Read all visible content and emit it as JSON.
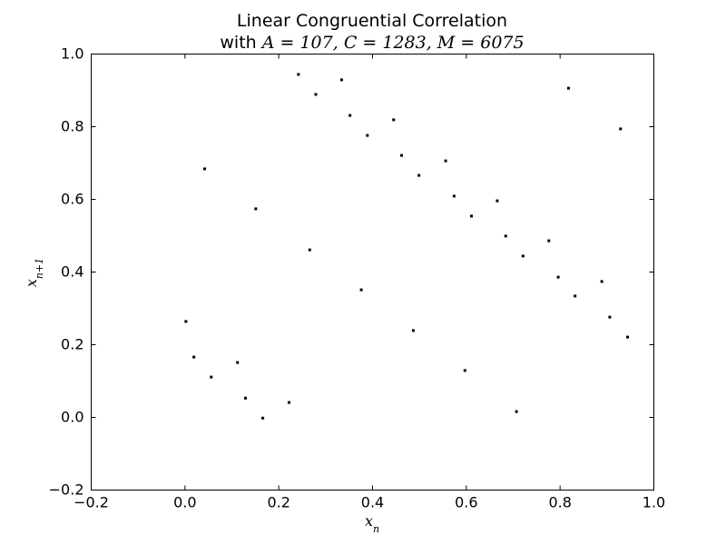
{
  "chart_data": {
    "type": "scatter",
    "title": "Linear Congruential Correlation",
    "subtitle_prefix": "with ",
    "subtitle_math": "A = 107, C = 1283, M = 6075",
    "xlabel": "x_n",
    "ylabel": "x_{n+1}",
    "xlim": [
      -0.2,
      1.0
    ],
    "ylim": [
      -0.2,
      1.0
    ],
    "xticks": [
      -0.2,
      0.0,
      0.2,
      0.4,
      0.6,
      0.8,
      1.0
    ],
    "yticks": [
      -0.2,
      0.0,
      0.2,
      0.4,
      0.6,
      0.8,
      1.0
    ],
    "xtick_labels": [
      "−0.2",
      "0.0",
      "0.2",
      "0.4",
      "0.6",
      "0.8",
      "1.0"
    ],
    "ytick_labels": [
      "−0.2",
      "0.0",
      "0.2",
      "0.4",
      "0.6",
      "0.8",
      "1.0"
    ],
    "grid": false,
    "marker_color": "#000000",
    "points": [
      {
        "x": 0.002,
        "y": 0.264
      },
      {
        "x": 0.019,
        "y": 0.166
      },
      {
        "x": 0.042,
        "y": 0.684
      },
      {
        "x": 0.056,
        "y": 0.111
      },
      {
        "x": 0.112,
        "y": 0.151
      },
      {
        "x": 0.129,
        "y": 0.053
      },
      {
        "x": 0.151,
        "y": 0.574
      },
      {
        "x": 0.166,
        "y": -0.002
      },
      {
        "x": 0.222,
        "y": 0.041
      },
      {
        "x": 0.242,
        "y": 0.944
      },
      {
        "x": 0.266,
        "y": 0.461
      },
      {
        "x": 0.279,
        "y": 0.889
      },
      {
        "x": 0.334,
        "y": 0.929
      },
      {
        "x": 0.352,
        "y": 0.831
      },
      {
        "x": 0.376,
        "y": 0.351
      },
      {
        "x": 0.389,
        "y": 0.776
      },
      {
        "x": 0.445,
        "y": 0.819
      },
      {
        "x": 0.462,
        "y": 0.721
      },
      {
        "x": 0.487,
        "y": 0.239
      },
      {
        "x": 0.499,
        "y": 0.666
      },
      {
        "x": 0.556,
        "y": 0.706
      },
      {
        "x": 0.574,
        "y": 0.609
      },
      {
        "x": 0.597,
        "y": 0.129
      },
      {
        "x": 0.611,
        "y": 0.554
      },
      {
        "x": 0.666,
        "y": 0.596
      },
      {
        "x": 0.684,
        "y": 0.499
      },
      {
        "x": 0.707,
        "y": 0.016
      },
      {
        "x": 0.721,
        "y": 0.444
      },
      {
        "x": 0.776,
        "y": 0.486
      },
      {
        "x": 0.796,
        "y": 0.386
      },
      {
        "x": 0.818,
        "y": 0.906
      },
      {
        "x": 0.832,
        "y": 0.334
      },
      {
        "x": 0.889,
        "y": 0.374
      },
      {
        "x": 0.906,
        "y": 0.276
      },
      {
        "x": 0.929,
        "y": 0.794
      },
      {
        "x": 0.944,
        "y": 0.221
      }
    ]
  }
}
